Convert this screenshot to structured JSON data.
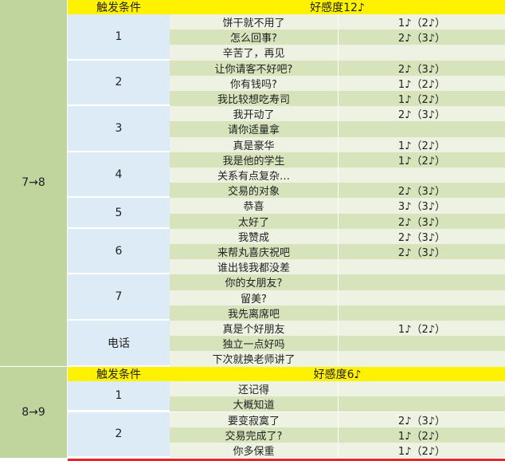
{
  "sections": [
    {
      "level": "7→8",
      "header": {
        "condition": "触发条件",
        "affection": "好感度12♪"
      },
      "groups": [
        {
          "condition": "1",
          "rows": [
            [
              "饼干就不用了",
              "1♪（2♪）"
            ],
            [
              "怎么回事?",
              "2♪（3♪）"
            ],
            [
              "辛苦了，再见",
              ""
            ]
          ]
        },
        {
          "condition": "2",
          "rows": [
            [
              "让你请客不好吧?",
              "2♪（3♪）"
            ],
            [
              "你有钱吗?",
              "1♪（2♪）"
            ],
            [
              "我比较想吃寿司",
              "1♪（2♪）"
            ]
          ]
        },
        {
          "condition": "3",
          "rows": [
            [
              "我开动了",
              "2♪（3♪）"
            ],
            [
              "请你适量拿",
              ""
            ],
            [
              "真是豪华",
              "1♪（2♪）"
            ]
          ]
        },
        {
          "condition": "4",
          "rows": [
            [
              "我是他的学生",
              "1♪（2♪）"
            ],
            [
              "关系有点复杂…",
              ""
            ],
            [
              "交易的对象",
              "2♪（3♪）"
            ]
          ]
        },
        {
          "condition": "5",
          "rows": [
            [
              "恭喜",
              "3♪（3♪）"
            ],
            [
              "太好了",
              "2♪（3♪）"
            ]
          ]
        },
        {
          "condition": "6",
          "rows": [
            [
              "我赞成",
              "2♪（3♪）"
            ],
            [
              "来帮丸喜庆祝吧",
              "2♪（3♪）"
            ],
            [
              "谁出钱我都没差",
              ""
            ]
          ]
        },
        {
          "condition": "7",
          "rows": [
            [
              "你的女朋友?",
              ""
            ],
            [
              "留美?",
              ""
            ],
            [
              "我先离席吧",
              ""
            ]
          ]
        },
        {
          "condition": "电话",
          "rows": [
            [
              "真是个好朋友",
              "1♪（2♪）"
            ],
            [
              "独立一点好吗",
              ""
            ],
            [
              "下次就换老师讲了",
              ""
            ]
          ]
        }
      ]
    },
    {
      "level": "8→9",
      "header": {
        "condition": "触发条件",
        "affection": "好感度6♪"
      },
      "groups": [
        {
          "condition": "1",
          "rows": [
            [
              "还记得",
              ""
            ],
            [
              "大概知道",
              ""
            ]
          ]
        },
        {
          "condition": "2",
          "rows": [
            [
              "要变寂寞了",
              "2♪（3♪）"
            ],
            [
              "交易完成了?",
              "1♪（2♪）"
            ],
            [
              "你多保重",
              "1♪（2♪）"
            ]
          ]
        }
      ]
    }
  ]
}
